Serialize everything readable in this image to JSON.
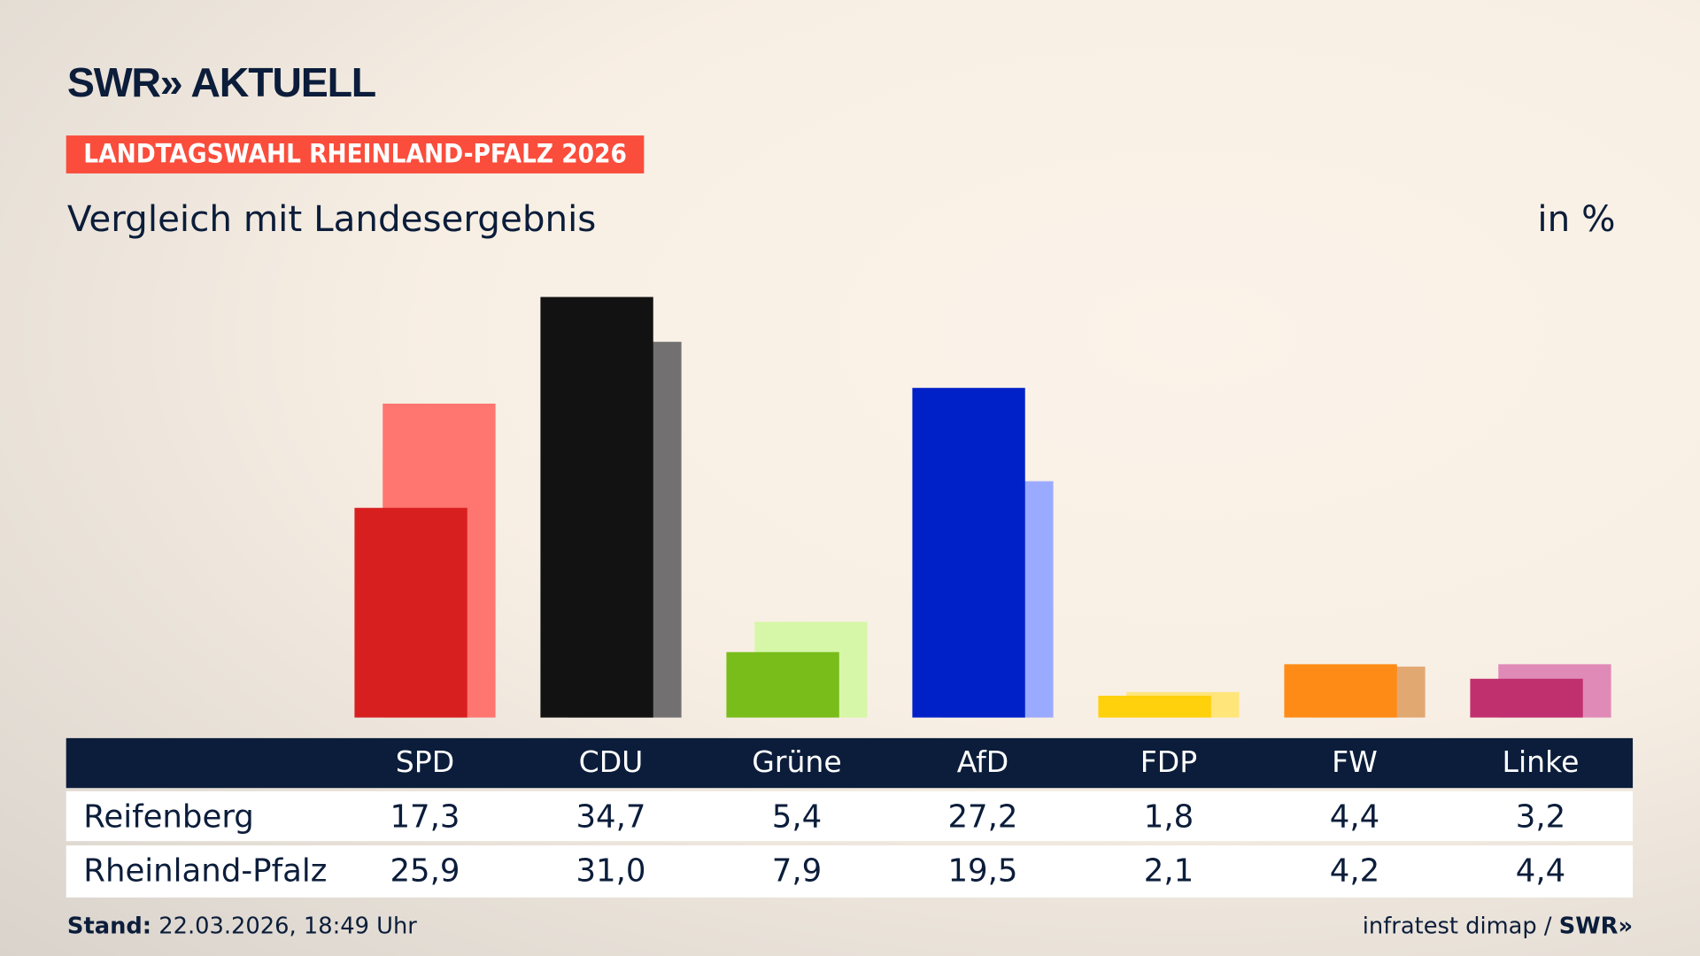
{
  "logo": "SWR» AKTUELL",
  "badge": "LANDTAGSWAHL RHEINLAND-PFALZ 2026",
  "subtitle": "Vergleich mit Landesergebnis",
  "unit": "in %",
  "footer": {
    "stand_label": "Stand:",
    "stand_value": "22.03.2026, 18:49 Uhr",
    "source": "infratest dimap / ",
    "source_logo": "SWR»"
  },
  "chart_data": {
    "type": "bar",
    "title": "Vergleich mit Landesergebnis",
    "unit": "in %",
    "categories": [
      "SPD",
      "CDU",
      "Grüne",
      "AfD",
      "FDP",
      "FW",
      "Linke"
    ],
    "series": [
      {
        "name": "Reifenberg",
        "values": [
          17.3,
          34.7,
          5.4,
          27.2,
          1.8,
          4.4,
          3.2
        ],
        "display": [
          "17,3",
          "34,7",
          "5,4",
          "27,2",
          "1,8",
          "4,4",
          "3,2"
        ],
        "colors": [
          "#d81f1f",
          "#121212",
          "#78bd1a",
          "#0021c8",
          "#ffd00c",
          "#ff8b17",
          "#c0306e"
        ]
      },
      {
        "name": "Rheinland-Pfalz",
        "values": [
          25.9,
          31.0,
          7.9,
          19.5,
          2.1,
          4.2,
          4.4
        ],
        "display": [
          "25,9",
          "31,0",
          "7,9",
          "19,5",
          "2,1",
          "4,2",
          "4,4"
        ],
        "colors": [
          "#ff7570",
          "#727070",
          "#d7f7a8",
          "#9aabff",
          "#ffe57a",
          "#e2a872",
          "#e08ab8"
        ]
      }
    ],
    "ylim": [
      0,
      35
    ],
    "grid": false
  }
}
